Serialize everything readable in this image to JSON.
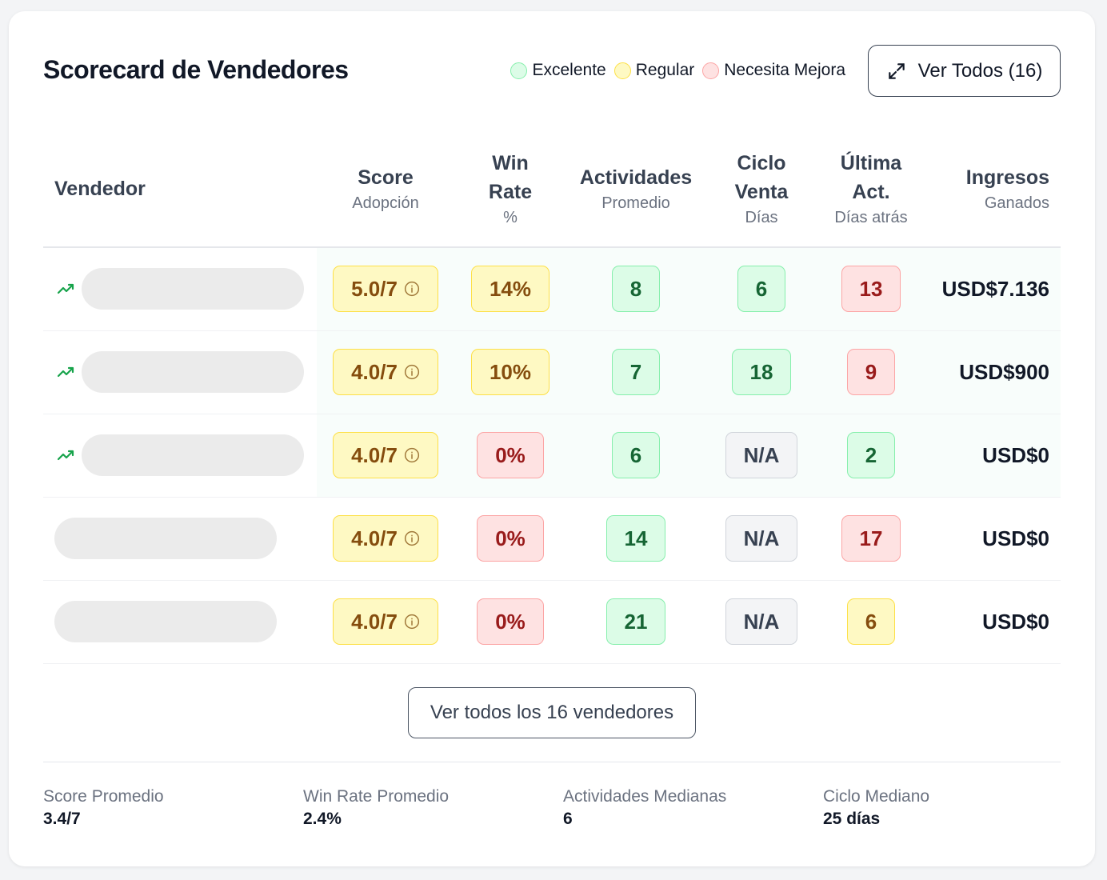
{
  "header": {
    "title": "Scorecard de Vendedores",
    "view_all_label": "Ver Todos (16)"
  },
  "legend": [
    {
      "label": "Excelente",
      "color": "#dcfce7",
      "border": "#86efac"
    },
    {
      "label": "Regular",
      "color": "#fef9c3",
      "border": "#fde047"
    },
    {
      "label": "Necesita Mejora",
      "color": "#fee2e2",
      "border": "#fca5a5"
    }
  ],
  "columns": [
    {
      "title": "Vendedor",
      "sub": ""
    },
    {
      "title": "Score",
      "sub": "Adopción"
    },
    {
      "title": "Win Rate",
      "sub": "%"
    },
    {
      "title": "Actividades",
      "sub": "Promedio"
    },
    {
      "title": "Ciclo Venta",
      "sub": "Días"
    },
    {
      "title": "Última Act.",
      "sub": "Días atrás"
    },
    {
      "title": "Ingresos",
      "sub": "Ganados"
    }
  ],
  "rows": [
    {
      "trending": true,
      "score": "5.0/7",
      "score_s": "y",
      "win": "14%",
      "win_s": "y",
      "act": "8",
      "act_s": "g",
      "cycle": "6",
      "cycle_s": "g",
      "last": "13",
      "last_s": "r",
      "income": "USD$7.136"
    },
    {
      "trending": true,
      "score": "4.0/7",
      "score_s": "y",
      "win": "10%",
      "win_s": "y",
      "act": "7",
      "act_s": "g",
      "cycle": "18",
      "cycle_s": "g",
      "last": "9",
      "last_s": "r",
      "income": "USD$900"
    },
    {
      "trending": true,
      "score": "4.0/7",
      "score_s": "y",
      "win": "0%",
      "win_s": "r",
      "act": "6",
      "act_s": "g",
      "cycle": "N/A",
      "cycle_s": "n",
      "last": "2",
      "last_s": "g",
      "income": "USD$0"
    },
    {
      "trending": false,
      "score": "4.0/7",
      "score_s": "y",
      "win": "0%",
      "win_s": "r",
      "act": "14",
      "act_s": "g",
      "cycle": "N/A",
      "cycle_s": "n",
      "last": "17",
      "last_s": "r",
      "income": "USD$0"
    },
    {
      "trending": false,
      "score": "4.0/7",
      "score_s": "y",
      "win": "0%",
      "win_s": "r",
      "act": "21",
      "act_s": "g",
      "cycle": "N/A",
      "cycle_s": "n",
      "last": "6",
      "last_s": "y",
      "income": "USD$0"
    }
  ],
  "more_label": "Ver todos los 16 vendedores",
  "stats": [
    {
      "label": "Score Promedio",
      "value": "3.4/7"
    },
    {
      "label": "Win Rate Promedio",
      "value": "2.4%"
    },
    {
      "label": "Actividades Medianas",
      "value": "6"
    },
    {
      "label": "Ciclo Mediano",
      "value": "25 días"
    }
  ]
}
